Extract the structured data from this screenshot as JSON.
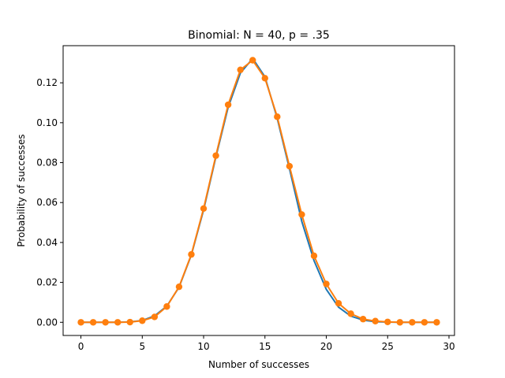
{
  "chart_data": {
    "type": "line",
    "title": "Binomial: N = 40, p = .35",
    "xlabel": "Number of successes",
    "ylabel": "Probability of successes",
    "xlim": [
      -1.45,
      30.45
    ],
    "ylim": [
      -0.0066,
      0.1386
    ],
    "xticks": [
      0,
      5,
      10,
      15,
      20,
      25,
      30
    ],
    "xtick_labels": [
      "0",
      "5",
      "10",
      "15",
      "20",
      "25",
      "30"
    ],
    "yticks": [
      0.0,
      0.02,
      0.04,
      0.06,
      0.08,
      0.1,
      0.12
    ],
    "ytick_labels": [
      "0.00",
      "0.02",
      "0.04",
      "0.06",
      "0.08",
      "0.10",
      "0.12"
    ],
    "grid": false,
    "legend": "none",
    "x": [
      0,
      1,
      2,
      3,
      4,
      5,
      6,
      7,
      8,
      9,
      10,
      11,
      12,
      13,
      14,
      15,
      16,
      17,
      18,
      19,
      20,
      21,
      22,
      23,
      24,
      25,
      26,
      27,
      28,
      29
    ],
    "series": [
      {
        "color": "#1f77b4",
        "marker": "none",
        "values": [
          0.0,
          0.0,
          0.0,
          0.0,
          0.0002,
          0.0009,
          0.0032,
          0.0081,
          0.0176,
          0.0337,
          0.0563,
          0.0828,
          0.1077,
          0.1249,
          0.1322,
          0.123,
          0.1022,
          0.0769,
          0.0506,
          0.0309,
          0.0165,
          0.0076,
          0.0031,
          0.0011,
          0.0003,
          0.0001,
          0.0,
          0.0,
          0.0,
          0.0
        ]
      },
      {
        "color": "#ff7f0e",
        "marker": "circle",
        "values": [
          0.0,
          0.0,
          0.0,
          0.0,
          0.0001,
          0.0008,
          0.0027,
          0.0079,
          0.0178,
          0.034,
          0.057,
          0.0835,
          0.109,
          0.1265,
          0.1313,
          0.1223,
          0.103,
          0.0782,
          0.054,
          0.0333,
          0.0192,
          0.0095,
          0.0043,
          0.0016,
          0.0006,
          0.0002,
          0.0,
          0.0,
          0.0,
          0.0
        ]
      }
    ]
  }
}
